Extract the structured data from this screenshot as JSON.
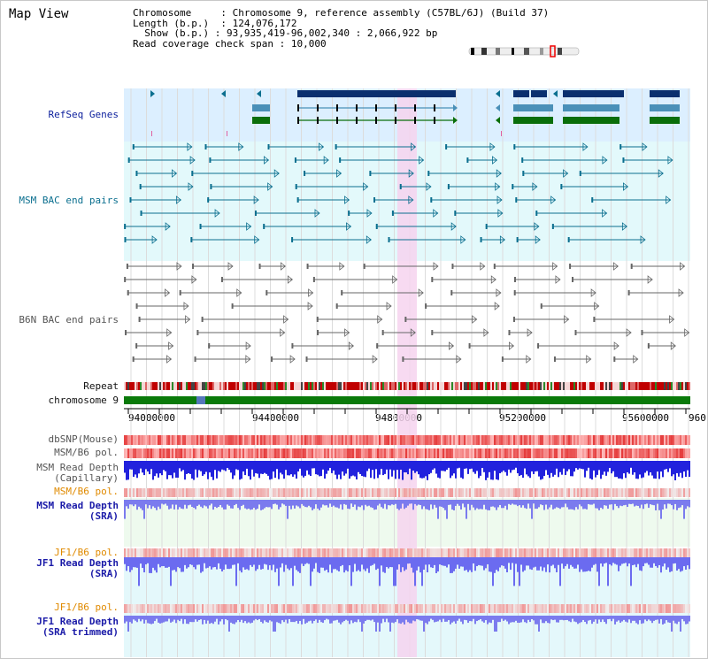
{
  "page_title": "Map View",
  "info": {
    "chromosome_key": "Chromosome",
    "chromosome_val": "Chromosome 9, reference assembly (C57BL/6J) (Build 37)",
    "length_key": "Length (b.p.)",
    "length_val": "124,076,172",
    "show_key": "Show (b.p.)",
    "show_val": "93,935,419-96,002,340 : 2,066,922 bp",
    "span_key": "Read coverage check span",
    "span_val": "10,000"
  },
  "tracks": {
    "refseq": "RefSeq Genes",
    "msm_bac": "MSM BAC end pairs",
    "b6n_bac": "B6N BAC end pairs",
    "repeat": "Repeat",
    "chromosome": "chromosome 9",
    "dbsnp": "dbSNP(Mouse)",
    "msm_b6_pol": "MSM/B6 pol.",
    "msm_depth_cap_1": "MSM Read Depth",
    "msm_depth_cap_2": "(Capillary)",
    "msm_b6_pol_sra": "MSM/B6 pol.",
    "msm_depth_sra_1": "MSM Read Depth",
    "msm_depth_sra_2": "(SRA)",
    "jf1_b6_pol": "JF1/B6 pol.",
    "jf1_depth_1": "JF1 Read Depth",
    "jf1_depth_2": "(SRA)",
    "jf1_b6_pol_2": "JF1/B6 pol.",
    "jf1_trim_1": "JF1 Read Depth",
    "jf1_trim_2": "(SRA trimmed)"
  },
  "ruler": {
    "ticks": [
      "94000000",
      "94400000",
      "94800000",
      "95200000",
      "95600000",
      "960"
    ]
  },
  "colors": {
    "refseq_bg": "#dcefff",
    "bac_bg": "#e3f9fb",
    "highlight": "#f6d4ef",
    "refseq_navy": "#0a2f6e",
    "refseq_steel": "#4a90b8",
    "refseq_green": "#0a6e0a",
    "teal": "#0b6f8f",
    "grey": "#666666",
    "chrom_green": "#0a7a0a"
  }
}
